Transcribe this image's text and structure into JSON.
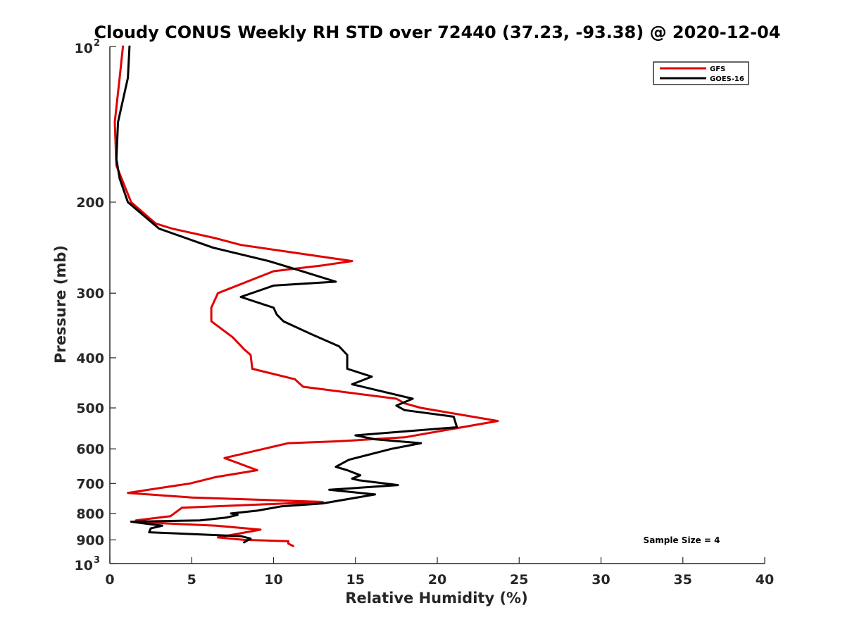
{
  "chart_data": {
    "type": "line",
    "title": "Cloudy CONUS Weekly RH STD over 72440 (37.23, -93.38) @ 2020-12-04",
    "xlabel": "Relative Humidity (%)",
    "ylabel": "Pressure (mb)",
    "xlim": [
      0,
      40
    ],
    "ylim": [
      100,
      1000
    ],
    "y_scale": "log",
    "y_reversed": true,
    "grid": false,
    "legend_position": "top-right",
    "x_ticks": [
      0,
      5,
      10,
      15,
      20,
      25,
      30,
      35,
      40
    ],
    "y_ticks": [
      {
        "value": 100,
        "base": "10",
        "exp": "2"
      },
      {
        "value": 200,
        "label": "200"
      },
      {
        "value": 300,
        "label": "300"
      },
      {
        "value": 400,
        "label": "400"
      },
      {
        "value": 500,
        "label": "500"
      },
      {
        "value": 600,
        "label": "600"
      },
      {
        "value": 700,
        "label": "700"
      },
      {
        "value": 800,
        "label": "800"
      },
      {
        "value": 900,
        "label": "900"
      },
      {
        "value": 1000,
        "base": "10",
        "exp": "3"
      }
    ],
    "annotation": "Sample Size = 4",
    "series": [
      {
        "name": "GFS",
        "color": "#e00000",
        "points": [
          [
            0.8,
            100
          ],
          [
            0.6,
            115
          ],
          [
            0.3,
            140
          ],
          [
            0.4,
            170
          ],
          [
            1.3,
            200
          ],
          [
            2.8,
            220
          ],
          [
            3.8,
            225
          ],
          [
            6.5,
            235
          ],
          [
            8.0,
            242
          ],
          [
            14.8,
            260
          ],
          [
            13.0,
            265
          ],
          [
            10.0,
            272
          ],
          [
            6.6,
            300
          ],
          [
            6.2,
            320
          ],
          [
            6.2,
            340
          ],
          [
            7.5,
            365
          ],
          [
            8.2,
            385
          ],
          [
            8.6,
            395
          ],
          [
            8.7,
            420
          ],
          [
            11.3,
            440
          ],
          [
            11.8,
            455
          ],
          [
            17.5,
            480
          ],
          [
            18.0,
            490
          ],
          [
            19.0,
            500
          ],
          [
            23.7,
            530
          ],
          [
            18.0,
            570
          ],
          [
            14.0,
            580
          ],
          [
            10.9,
            585
          ],
          [
            9.4,
            600
          ],
          [
            7.0,
            625
          ],
          [
            9.0,
            660
          ],
          [
            6.5,
            680
          ],
          [
            4.9,
            700
          ],
          [
            1.1,
            730
          ],
          [
            5.0,
            745
          ],
          [
            13.0,
            760
          ],
          [
            4.4,
            780
          ],
          [
            3.7,
            810
          ],
          [
            1.6,
            825
          ],
          [
            3.0,
            835
          ],
          [
            6.5,
            845
          ],
          [
            9.2,
            860
          ],
          [
            6.6,
            890
          ],
          [
            8.2,
            900
          ],
          [
            10.9,
            905
          ],
          [
            10.9,
            915
          ],
          [
            11.2,
            925
          ]
        ]
      },
      {
        "name": "GOES-16",
        "color": "#000000",
        "points": [
          [
            1.2,
            100
          ],
          [
            1.1,
            115
          ],
          [
            0.5,
            140
          ],
          [
            0.4,
            165
          ],
          [
            0.6,
            180
          ],
          [
            1.1,
            200
          ],
          [
            3.0,
            225
          ],
          [
            6.3,
            245
          ],
          [
            9.7,
            260
          ],
          [
            11.4,
            270
          ],
          [
            13.8,
            285
          ],
          [
            10.0,
            290
          ],
          [
            8.0,
            305
          ],
          [
            10.0,
            320
          ],
          [
            10.2,
            330
          ],
          [
            10.6,
            340
          ],
          [
            12.3,
            360
          ],
          [
            14.0,
            380
          ],
          [
            14.5,
            395
          ],
          [
            14.5,
            420
          ],
          [
            16.0,
            435
          ],
          [
            14.8,
            450
          ],
          [
            18.5,
            480
          ],
          [
            17.5,
            495
          ],
          [
            18.0,
            505
          ],
          [
            21.0,
            520
          ],
          [
            21.2,
            545
          ],
          [
            15.0,
            565
          ],
          [
            16.2,
            575
          ],
          [
            19.0,
            585
          ],
          [
            17.2,
            600
          ],
          [
            14.6,
            630
          ],
          [
            13.8,
            650
          ],
          [
            14.5,
            660
          ],
          [
            15.3,
            675
          ],
          [
            14.8,
            685
          ],
          [
            15.2,
            690
          ],
          [
            17.6,
            705
          ],
          [
            13.4,
            720
          ],
          [
            16.2,
            735
          ],
          [
            13.0,
            765
          ],
          [
            10.5,
            775
          ],
          [
            9.0,
            790
          ],
          [
            7.4,
            800
          ],
          [
            7.8,
            805
          ],
          [
            7.1,
            815
          ],
          [
            5.5,
            825
          ],
          [
            1.3,
            830
          ],
          [
            3.2,
            845
          ],
          [
            2.5,
            855
          ],
          [
            2.4,
            870
          ],
          [
            8.0,
            885
          ],
          [
            8.6,
            895
          ],
          [
            8.2,
            910
          ]
        ]
      }
    ]
  }
}
